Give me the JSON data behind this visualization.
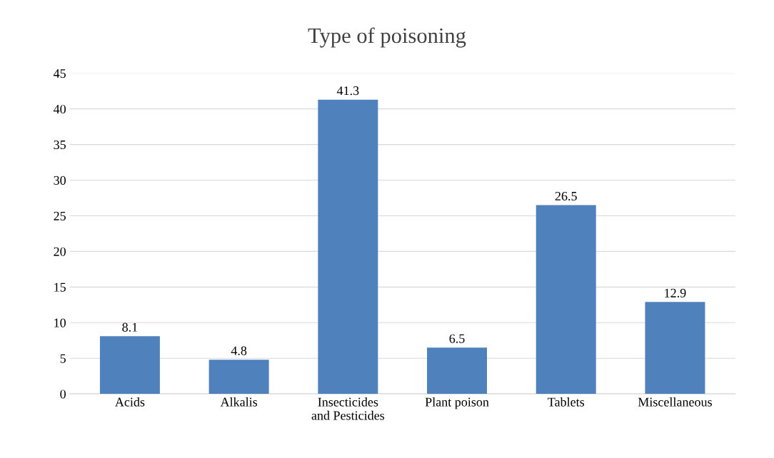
{
  "chart_data": {
    "type": "bar",
    "title": "Type of poisoning",
    "categories": [
      "Acids",
      "Alkalis",
      "Insecticides\nand Pesticides",
      "Plant poison",
      "Tablets",
      "Miscellaneous"
    ],
    "values": [
      8.1,
      4.8,
      41.3,
      6.5,
      26.5,
      12.9
    ],
    "color": "#4f81bd",
    "ylim": [
      0,
      45
    ],
    "yticks": [
      0,
      5,
      10,
      15,
      20,
      25,
      30,
      35,
      40,
      45
    ],
    "grid": "y",
    "data_labels": true
  }
}
